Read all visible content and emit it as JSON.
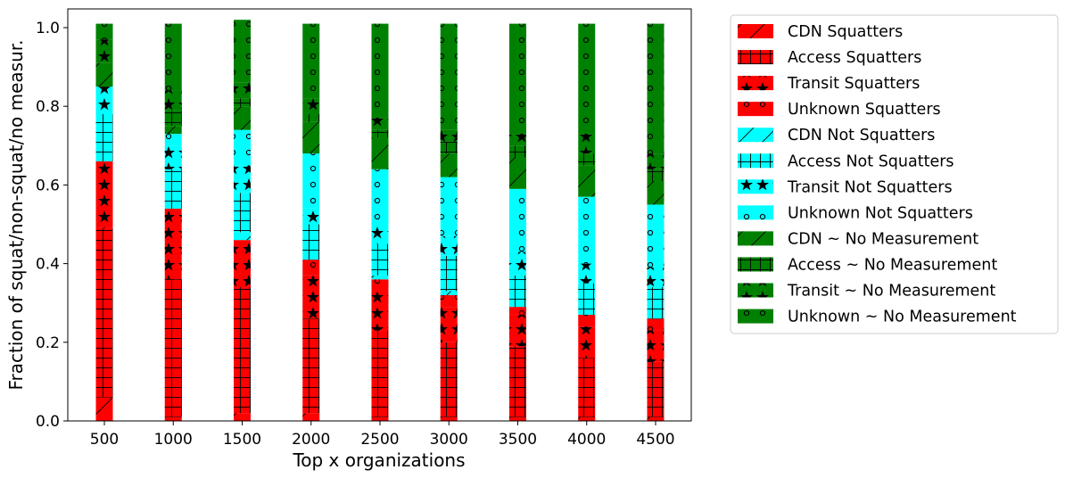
{
  "chart_data": {
    "type": "bar",
    "stacked": true,
    "xlabel": "Top x organizations",
    "ylabel": "Fraction of squat/non-squat/no measur.",
    "ylim": [
      0,
      1.0
    ],
    "yticks": [
      "0.0",
      "0.2",
      "0.4",
      "0.6",
      "0.8",
      "1.0"
    ],
    "categories": [
      "500",
      "1000",
      "1500",
      "2000",
      "2500",
      "3000",
      "3500",
      "4000",
      "4500"
    ],
    "legend_position": "right",
    "grid": false,
    "series": [
      {
        "name": "CDN Squatters",
        "color": "#ff0000",
        "hatch": "diag",
        "values": [
          0.06,
          0.01,
          0.02,
          0.02,
          0.01,
          0.01,
          0.01,
          0.01,
          0.01
        ]
      },
      {
        "name": "Access Squatters",
        "color": "#ff0000",
        "hatch": "plus",
        "values": [
          0.43,
          0.35,
          0.32,
          0.24,
          0.22,
          0.19,
          0.18,
          0.15,
          0.14
        ]
      },
      {
        "name": "Transit Squatters",
        "color": "#ff0000",
        "hatch": "star",
        "values": [
          0.17,
          0.18,
          0.12,
          0.11,
          0.1,
          0.09,
          0.08,
          0.08,
          0.08
        ]
      },
      {
        "name": "Unknown Squatters",
        "color": "#ff0000",
        "hatch": "circle",
        "values": [
          0.0,
          0.0,
          0.0,
          0.04,
          0.03,
          0.03,
          0.02,
          0.03,
          0.03
        ]
      },
      {
        "name": "CDN Not Squatters",
        "color": "#00ffff",
        "hatch": "diag",
        "values": [
          0.0,
          0.0,
          0.02,
          0.0,
          0.01,
          0.01,
          0.0,
          0.0,
          0.0
        ]
      },
      {
        "name": "Access Not Squatters",
        "color": "#00ffff",
        "hatch": "plus",
        "values": [
          0.12,
          0.1,
          0.1,
          0.09,
          0.08,
          0.09,
          0.08,
          0.08,
          0.08
        ]
      },
      {
        "name": "Transit Not Squatters",
        "color": "#00ffff",
        "hatch": "star",
        "values": [
          0.07,
          0.06,
          0.07,
          0.04,
          0.05,
          0.05,
          0.06,
          0.05,
          0.05
        ]
      },
      {
        "name": "Unknown Not Squatters",
        "color": "#00ffff",
        "hatch": "circle",
        "values": [
          0.0,
          0.03,
          0.09,
          0.14,
          0.14,
          0.15,
          0.16,
          0.17,
          0.16
        ]
      },
      {
        "name": "CDN ~ No Measurement",
        "color": "#008000",
        "hatch": "diag",
        "values": [
          0.06,
          0.02,
          0.06,
          0.08,
          0.08,
          0.06,
          0.08,
          0.08,
          0.06
        ]
      },
      {
        "name": "Access ~ No Measurement",
        "color": "#008000",
        "hatch": "plus",
        "values": [
          0.0,
          0.04,
          0.02,
          0.02,
          0.02,
          0.03,
          0.03,
          0.03,
          0.03
        ]
      },
      {
        "name": "Transit ~ No Measurement",
        "color": "#008000",
        "hatch": "star",
        "values": [
          0.06,
          0.05,
          0.04,
          0.04,
          0.03,
          0.03,
          0.03,
          0.05,
          0.04
        ]
      },
      {
        "name": "Unknown ~ No Measurement",
        "color": "#008000",
        "hatch": "circle",
        "values": [
          0.04,
          0.17,
          0.16,
          0.19,
          0.24,
          0.27,
          0.28,
          0.28,
          0.33
        ]
      }
    ]
  }
}
